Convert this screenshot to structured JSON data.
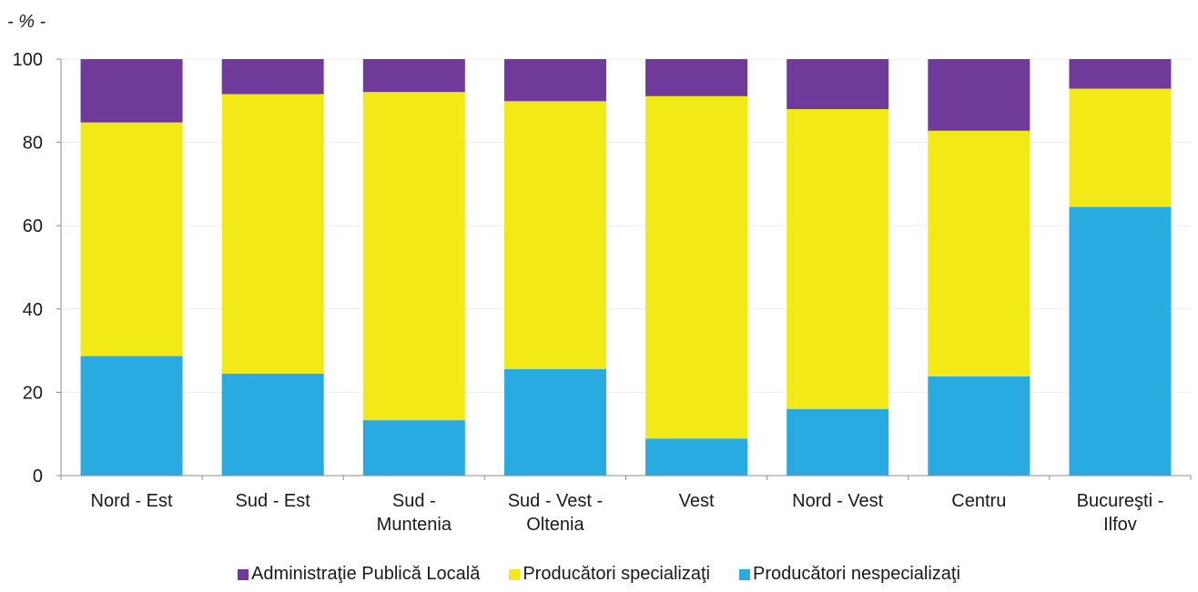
{
  "chart_data": {
    "type": "bar",
    "stacked": true,
    "unit_label": "- % -",
    "title": "",
    "xlabel": "",
    "ylabel": "",
    "ylim": [
      0,
      100
    ],
    "yticks": [
      0,
      20,
      40,
      60,
      80,
      100
    ],
    "grid": true,
    "legend_position": "bottom",
    "categories": [
      [
        "Nord - Est"
      ],
      [
        "Sud - Est"
      ],
      [
        "Sud -",
        "Muntenia"
      ],
      [
        "Sud - Vest -",
        "Oltenia"
      ],
      [
        "Vest"
      ],
      [
        "Nord - Vest"
      ],
      [
        "Centru"
      ],
      [
        "Bucureşti -",
        "Ilfov"
      ]
    ],
    "series": [
      {
        "name": "Producători nespecializaţi",
        "color": "#29ABE2",
        "values": [
          28.7,
          24.5,
          13.3,
          25.6,
          8.9,
          16.0,
          23.8,
          64.5
        ]
      },
      {
        "name": "Producători specializaţi",
        "color": "#F2E916",
        "values": [
          56.1,
          67.1,
          78.8,
          64.3,
          82.2,
          72.0,
          59.0,
          28.4
        ]
      },
      {
        "name": "Administraţie Publică Locală",
        "color": "#6F3A9A",
        "values": [
          15.2,
          8.4,
          7.9,
          10.1,
          8.9,
          12.0,
          17.2,
          7.1
        ]
      }
    ],
    "legend_order": [
      2,
      1,
      0
    ]
  }
}
